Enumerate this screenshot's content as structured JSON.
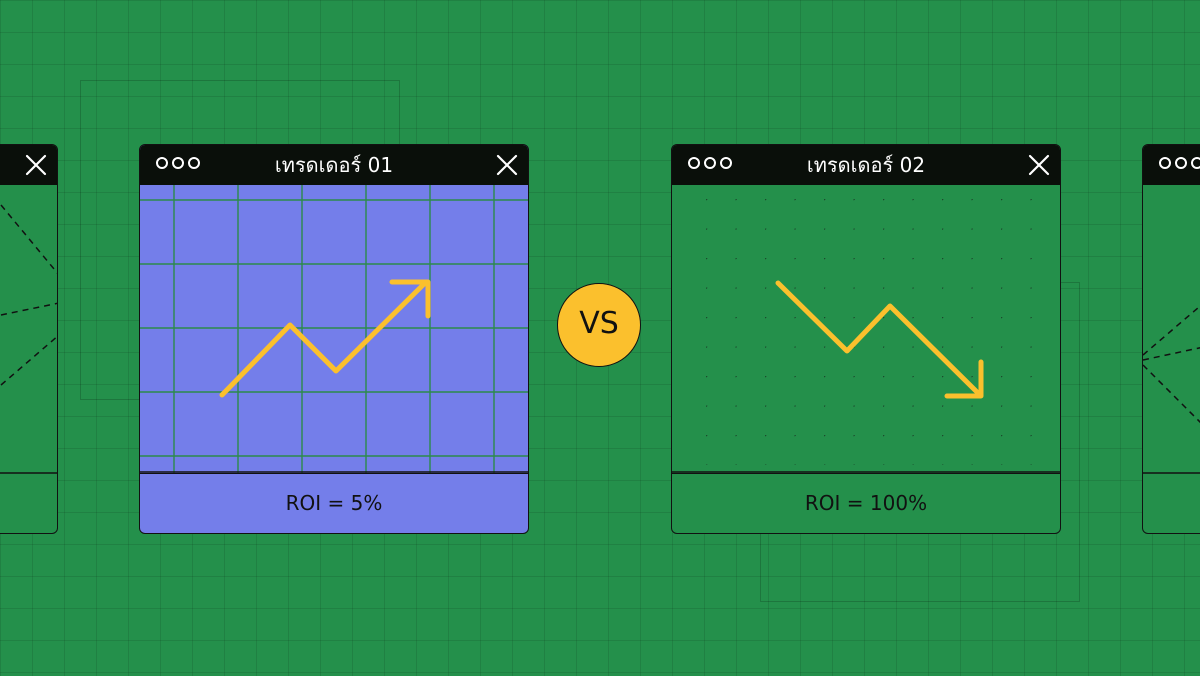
{
  "colors": {
    "background": "#24904b",
    "trader1_body": "#747eea",
    "trader2_body": "#24904b",
    "arrow": "#fbc02d",
    "vs_badge": "#fbc02d",
    "titlebar": "#0a0f0a"
  },
  "windows": [
    {
      "title": "เทรดเดอร์ 01",
      "footer": "ROI = 5%",
      "chart_style": "grid",
      "arrow_direction": "up",
      "icons": [
        "window-dots-icon",
        "close-icon",
        "trend-up-arrow-icon"
      ]
    },
    {
      "title": "เทรดเดอร์ 02",
      "footer": "ROI = 100%",
      "chart_style": "dots",
      "arrow_direction": "down",
      "icons": [
        "window-dots-icon",
        "close-icon",
        "trend-down-arrow-icon"
      ]
    }
  ],
  "vs_label": "VS"
}
